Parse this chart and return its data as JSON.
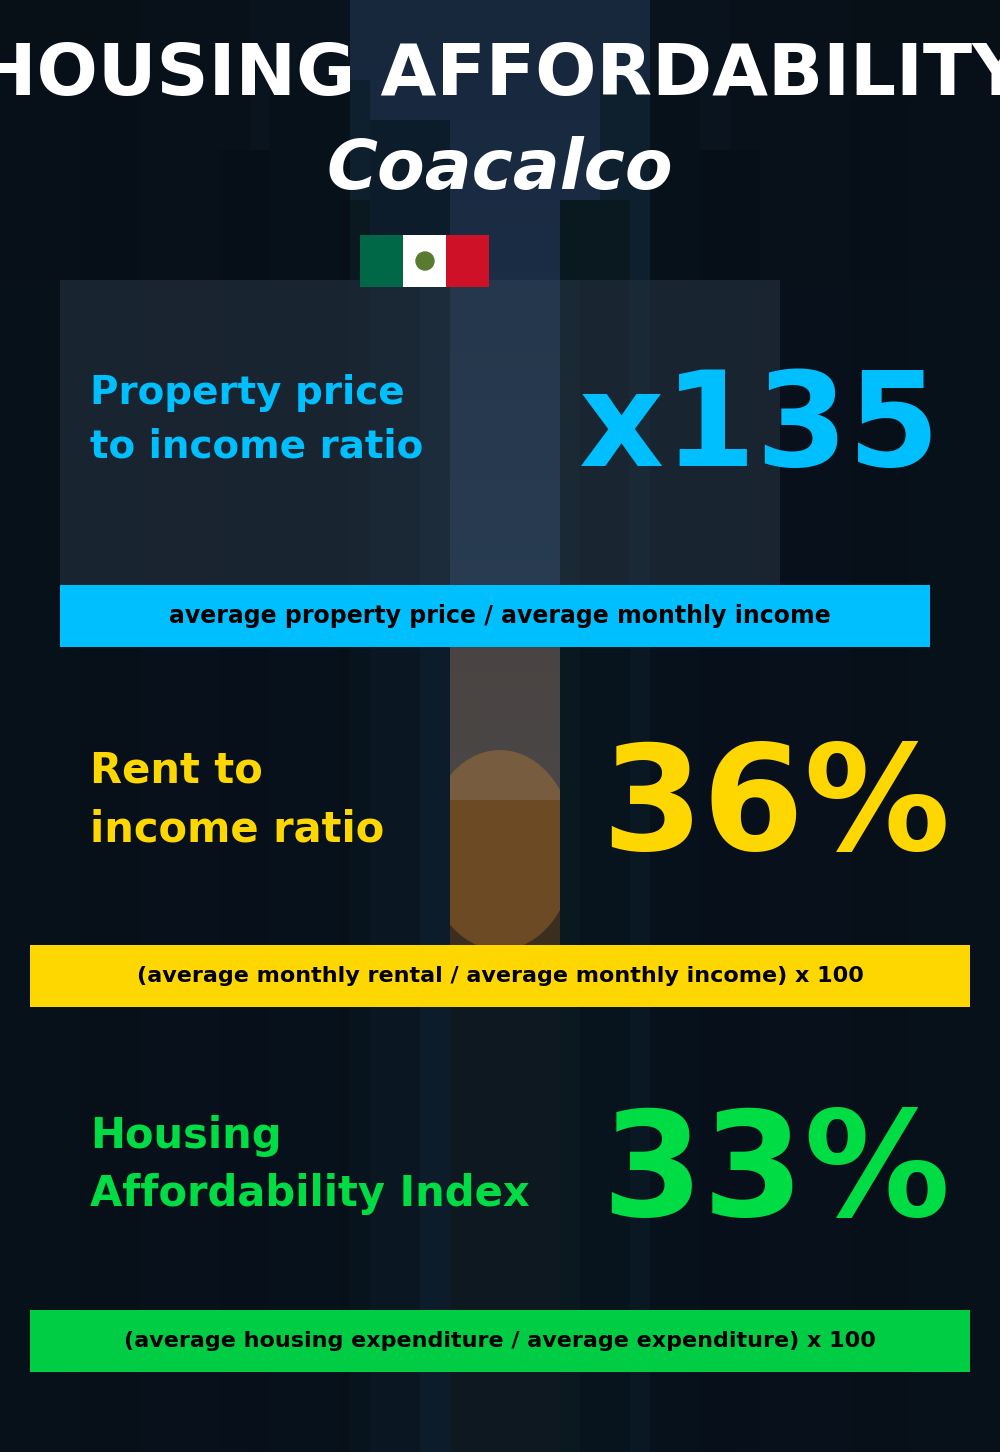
{
  "title_line1": "HOUSING AFFORDABILITY",
  "title_line2": "Coacalco",
  "bg_color": "#0d1820",
  "section1_label": "Property price\nto income ratio",
  "section1_value": "x135",
  "section1_label_color": "#00bfff",
  "section1_value_color": "#00bfff",
  "section1_banner": "average property price / average monthly income",
  "section1_banner_bg": "#00bfff",
  "section2_label": "Rent to\nincome ratio",
  "section2_value": "36%",
  "section2_label_color": "#ffd700",
  "section2_value_color": "#ffd700",
  "section2_banner": "(average monthly rental / average monthly income) x 100",
  "section2_banner_bg": "#ffd700",
  "section3_label": "Housing\nAffordability Index",
  "section3_value": "33%",
  "section3_label_color": "#00dd44",
  "section3_value_color": "#00dd44",
  "section3_banner": "(average housing expenditure / average expenditure) x 100",
  "section3_banner_bg": "#00cc44",
  "title_color": "#ffffff",
  "subtitle_color": "#ffffff",
  "flag_green": "#006847",
  "flag_white": "#ffffff",
  "flag_red": "#ce1126"
}
